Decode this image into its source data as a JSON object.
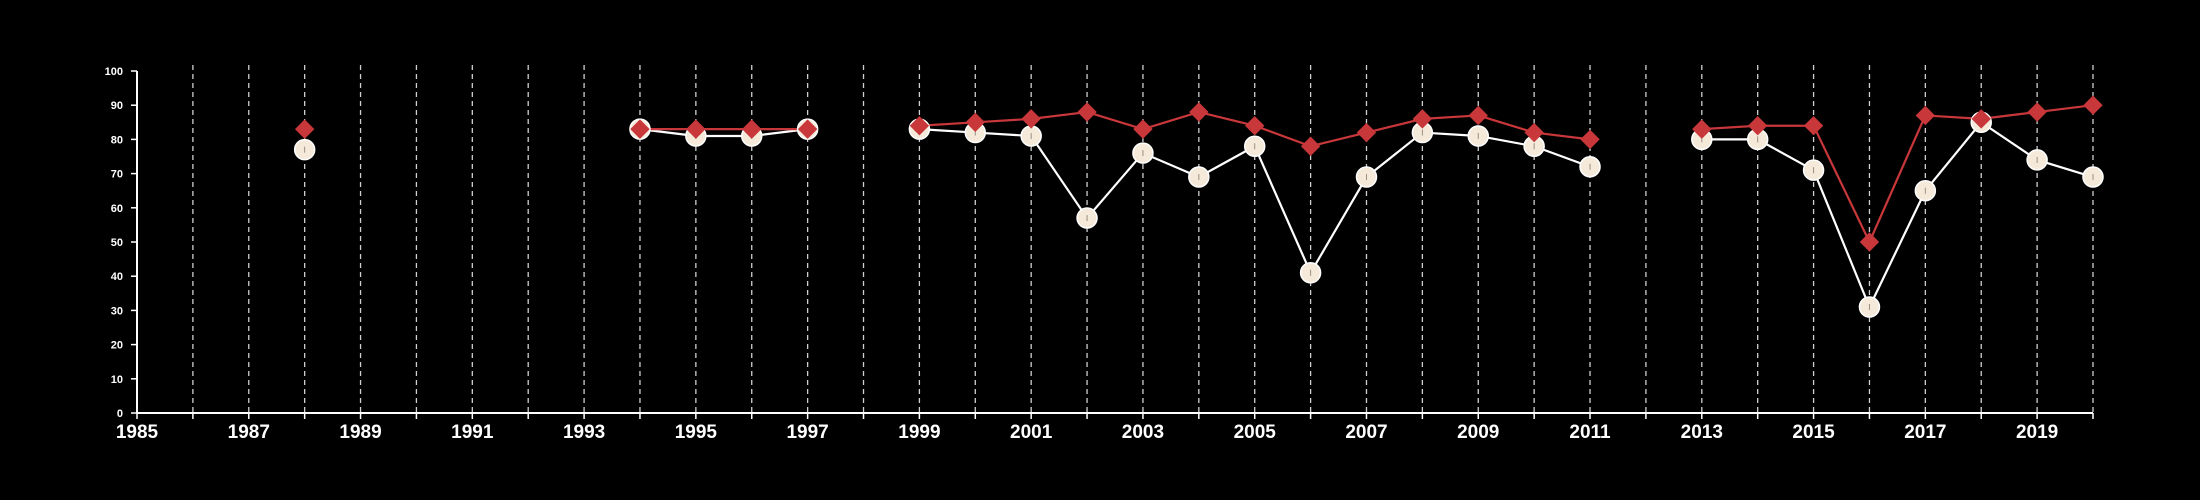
{
  "chart_data": {
    "type": "line",
    "xlim": [
      1985,
      2020
    ],
    "ylim": [
      0,
      100
    ],
    "x_tick_labels": [
      "1985",
      "1987",
      "1989",
      "1991",
      "1993",
      "1995",
      "1997",
      "1999",
      "2001",
      "2003",
      "2005",
      "2007",
      "2009",
      "2011",
      "2013",
      "2015",
      "2017",
      "2019"
    ],
    "y_tick_labels": [
      "0",
      "10",
      "20",
      "30",
      "40",
      "50",
      "60",
      "70",
      "80",
      "90",
      "100"
    ],
    "grid": "vertical dashed at each year",
    "x": [
      1985,
      1986,
      1987,
      1988,
      1989,
      1990,
      1991,
      1992,
      1993,
      1994,
      1995,
      1996,
      1997,
      1998,
      1999,
      2000,
      2001,
      2002,
      2003,
      2004,
      2005,
      2006,
      2007,
      2008,
      2009,
      2010,
      2011,
      2012,
      2013,
      2014,
      2015,
      2016,
      2017,
      2018,
      2019,
      2020
    ],
    "series": [
      {
        "marker": "circle",
        "color": "#f5e9da",
        "values": [
          null,
          null,
          null,
          77,
          null,
          null,
          null,
          null,
          null,
          83,
          81,
          81,
          83,
          null,
          83,
          82,
          81,
          57,
          76,
          69,
          78,
          41,
          69,
          82,
          81,
          78,
          72,
          null,
          80,
          80,
          71,
          31,
          65,
          85,
          74,
          69
        ]
      },
      {
        "marker": "diamond",
        "color": "#c8373a",
        "values": [
          null,
          null,
          null,
          83,
          null,
          null,
          null,
          null,
          null,
          83,
          83,
          83,
          83,
          null,
          84,
          85,
          86,
          88,
          83,
          88,
          84,
          78,
          82,
          86,
          87,
          82,
          80,
          null,
          83,
          84,
          84,
          50,
          87,
          86,
          88,
          90
        ]
      }
    ]
  }
}
